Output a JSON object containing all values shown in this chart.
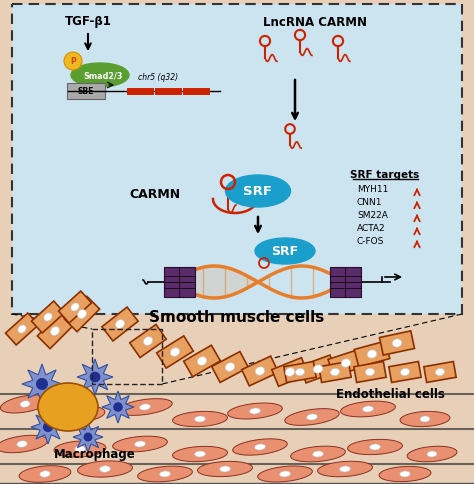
{
  "bg_color": "#e8d0b8",
  "box_bg": "#cce4f0",
  "box_border": "#333333",
  "title_smooth": "Smooth muscle cells",
  "label_macrophage": "Macrophage",
  "label_endothelial": "Endothelial cells",
  "label_tgf": "TGF-β1",
  "label_lncrna": "LncRNA CARMN",
  "label_carmn": "CARMN",
  "label_srf": "SRF",
  "label_srf_targets": "SRF targets",
  "label_chr5": "chr5 (q32)",
  "label_sbe": "SBE",
  "srf_targets": [
    "MYH11",
    "CNN1",
    "SM22A",
    "ACTA2",
    "C-FOS"
  ],
  "red_color": "#cc2200",
  "orange_color": "#e87d2a",
  "green_color": "#5a9e30",
  "teal_color": "#1a9fcc",
  "purple_color": "#5a2d6a",
  "pink_salmon": "#e89070",
  "cell_border": "#8B3000",
  "endo_color": "#e8a060",
  "dark_color": "#1a1a1a",
  "blue_cell": "#7090cc",
  "blue_cell_dark": "#203080"
}
